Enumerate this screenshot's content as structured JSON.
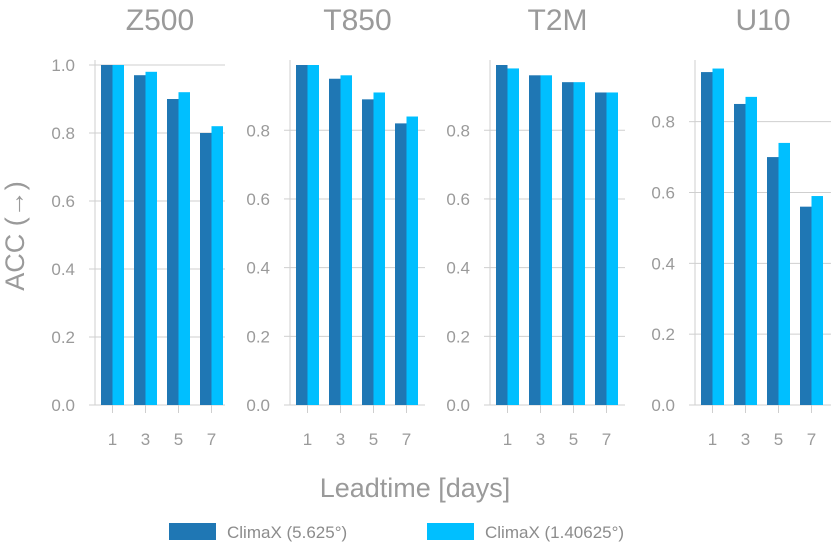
{
  "chart_data": {
    "type": "bar",
    "ylabel": "ACC (→)",
    "xlabel": "Leadtime [days]",
    "categories": [
      "1",
      "3",
      "5",
      "7"
    ],
    "legend": {
      "placement": "bottom",
      "entries": [
        "ClimaX (5.625°)",
        "ClimaX (1.40625°)"
      ]
    },
    "colors": {
      "ClimaX (5.625°)": "#1f77b4",
      "ClimaX (1.40625°)": "#00bfff"
    },
    "grid": true,
    "panels": [
      {
        "title": "Z500",
        "ylim": [
          0,
          1.0
        ],
        "yticks": [
          "0.0",
          "0.2",
          "0.4",
          "0.6",
          "0.8",
          "1.0"
        ],
        "series": [
          {
            "name": "ClimaX (5.625°)",
            "values": [
              1.0,
              0.97,
              0.9,
              0.8
            ]
          },
          {
            "name": "ClimaX (1.40625°)",
            "values": [
              1.0,
              0.98,
              0.92,
              0.82
            ]
          }
        ]
      },
      {
        "title": "T850",
        "ylim": [
          0,
          0.99
        ],
        "yticks": [
          "0.0",
          "0.2",
          "0.4",
          "0.6",
          "0.8"
        ],
        "series": [
          {
            "name": "ClimaX (5.625°)",
            "values": [
              0.99,
              0.95,
              0.89,
              0.82
            ]
          },
          {
            "name": "ClimaX (1.40625°)",
            "values": [
              0.99,
              0.96,
              0.91,
              0.84
            ]
          }
        ]
      },
      {
        "title": "T2M",
        "ylim": [
          0,
          0.99
        ],
        "yticks": [
          "0.0",
          "0.2",
          "0.4",
          "0.6",
          "0.8"
        ],
        "series": [
          {
            "name": "ClimaX (5.625°)",
            "values": [
              0.99,
              0.96,
              0.94,
              0.91
            ]
          },
          {
            "name": "ClimaX (1.40625°)",
            "values": [
              0.98,
              0.96,
              0.94,
              0.91
            ]
          }
        ]
      },
      {
        "title": "U10",
        "ylim": [
          0,
          0.96
        ],
        "yticks": [
          "0.0",
          "0.2",
          "0.4",
          "0.6",
          "0.8"
        ],
        "series": [
          {
            "name": "ClimaX (5.625°)",
            "values": [
              0.94,
              0.85,
              0.7,
              0.56
            ]
          },
          {
            "name": "ClimaX (1.40625°)",
            "values": [
              0.95,
              0.87,
              0.74,
              0.59
            ]
          }
        ]
      }
    ]
  }
}
